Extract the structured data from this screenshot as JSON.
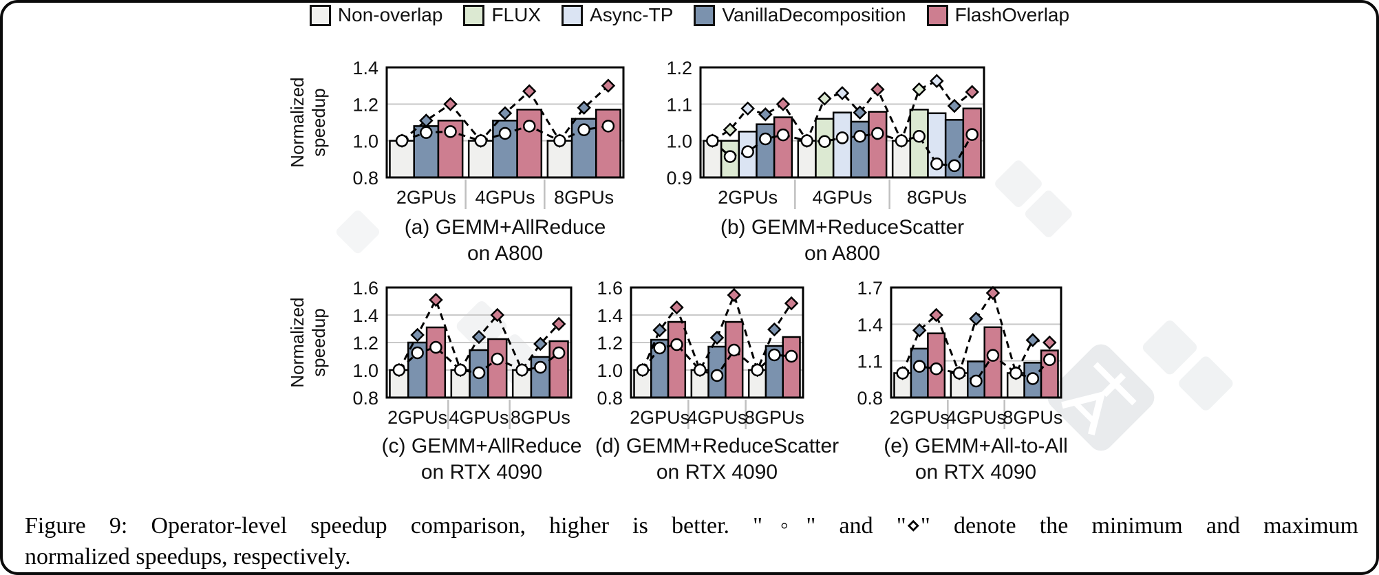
{
  "legend": {
    "items": [
      {
        "key": "non_overlap",
        "label": "Non-overlap"
      },
      {
        "key": "flux",
        "label": "FLUX"
      },
      {
        "key": "async_tp",
        "label": "Async-TP"
      },
      {
        "key": "vanilla",
        "label": "VanillaDecomposition"
      },
      {
        "key": "flash",
        "label": "FlashOverlap"
      }
    ]
  },
  "colors": {
    "non_overlap": "#f0f0ee",
    "flux": "#dce9d2",
    "async_tp": "#dbe4f3",
    "vanilla": "#7b92ae",
    "flash": "#cd7e90",
    "grid": "#c9c9c9",
    "separator": "#c0c0c0",
    "ink": "#000000"
  },
  "marker_key": {
    "min_marker": "circle",
    "max_marker": "diamond"
  },
  "chart_data": [
    {
      "id": "a",
      "type": "bar",
      "caption_line1": "(a) GEMM+AllReduce",
      "caption_line2": "on A800",
      "ylabel": "Normalized speedup",
      "ylim": [
        0.8,
        1.4
      ],
      "yticks": [
        0.8,
        1.0,
        1.2,
        1.4
      ],
      "groups": [
        "2GPUs",
        "4GPUs",
        "8GPUs"
      ],
      "series": [
        {
          "key": "non_overlap",
          "name": "Non-overlap",
          "bars": [
            1.0,
            1.0,
            1.0
          ],
          "min": [
            1.0,
            1.0,
            1.0
          ],
          "max": [
            1.0,
            1.0,
            1.0
          ]
        },
        {
          "key": "vanilla",
          "name": "VanillaDecomposition",
          "bars": [
            1.08,
            1.11,
            1.12
          ],
          "min": [
            1.045,
            1.04,
            1.06
          ],
          "max": [
            1.11,
            1.15,
            1.18
          ]
        },
        {
          "key": "flash",
          "name": "FlashOverlap",
          "bars": [
            1.11,
            1.17,
            1.17
          ],
          "min": [
            1.05,
            1.08,
            1.08
          ],
          "max": [
            1.2,
            1.27,
            1.3
          ]
        }
      ]
    },
    {
      "id": "b",
      "type": "bar",
      "caption_line1": "(b) GEMM+ReduceScatter",
      "caption_line2": "on A800",
      "ylabel": null,
      "ylim": [
        0.9,
        1.2
      ],
      "yticks": [
        0.9,
        1.0,
        1.1,
        1.2
      ],
      "groups": [
        "2GPUs",
        "4GPUs",
        "8GPUs"
      ],
      "series": [
        {
          "key": "non_overlap",
          "name": "Non-overlap",
          "bars": [
            1.0,
            1.0,
            1.0
          ],
          "min": [
            1.0,
            1.0,
            1.0
          ],
          "max": [
            1.0,
            1.0,
            1.0
          ]
        },
        {
          "key": "flux",
          "name": "FLUX",
          "bars": [
            1.0,
            1.06,
            1.085
          ],
          "min": [
            0.957,
            0.998,
            1.012
          ],
          "max": [
            1.03,
            1.115,
            1.14
          ]
        },
        {
          "key": "async_tp",
          "name": "Async-TP",
          "bars": [
            1.025,
            1.077,
            1.075
          ],
          "min": [
            0.97,
            1.008,
            0.937
          ],
          "max": [
            1.088,
            1.13,
            1.163
          ]
        },
        {
          "key": "vanilla",
          "name": "VanillaDecomposition",
          "bars": [
            1.045,
            1.052,
            1.057
          ],
          "min": [
            1.005,
            1.012,
            0.932
          ],
          "max": [
            1.072,
            1.077,
            1.095
          ]
        },
        {
          "key": "flash",
          "name": "FlashOverlap",
          "bars": [
            1.064,
            1.079,
            1.088
          ],
          "min": [
            1.016,
            1.02,
            1.017
          ],
          "max": [
            1.1,
            1.14,
            1.133
          ]
        }
      ]
    },
    {
      "id": "c",
      "type": "bar",
      "caption_line1": "(c) GEMM+AllReduce",
      "caption_line2": "on RTX 4090",
      "ylabel": "Normalized speedup",
      "ylim": [
        0.8,
        1.6
      ],
      "yticks": [
        0.8,
        1.0,
        1.2,
        1.4,
        1.6
      ],
      "groups": [
        "2GPUs",
        "4GPUs",
        "8GPUs"
      ],
      "series": [
        {
          "key": "non_overlap",
          "name": "Non-overlap",
          "bars": [
            1.0,
            1.0,
            1.0
          ],
          "min": [
            1.0,
            1.0,
            1.0
          ],
          "max": [
            1.0,
            1.0,
            1.0
          ]
        },
        {
          "key": "vanilla",
          "name": "VanillaDecomposition",
          "bars": [
            1.2,
            1.145,
            1.095
          ],
          "min": [
            1.125,
            0.98,
            1.02
          ],
          "max": [
            1.255,
            1.24,
            1.19
          ]
        },
        {
          "key": "flash",
          "name": "FlashOverlap",
          "bars": [
            1.31,
            1.225,
            1.21
          ],
          "min": [
            1.165,
            1.08,
            1.125
          ],
          "max": [
            1.51,
            1.4,
            1.335
          ]
        }
      ]
    },
    {
      "id": "d",
      "type": "bar",
      "caption_line1": "(d) GEMM+ReduceScatter",
      "caption_line2": "on RTX 4090",
      "ylabel": null,
      "ylim": [
        0.8,
        1.6
      ],
      "yticks": [
        0.8,
        1.0,
        1.2,
        1.4,
        1.6
      ],
      "groups": [
        "2GPUs",
        "4GPUs",
        "8GPUs"
      ],
      "series": [
        {
          "key": "non_overlap",
          "name": "Non-overlap",
          "bars": [
            1.0,
            1.0,
            1.0
          ],
          "min": [
            1.0,
            1.0,
            1.0
          ],
          "max": [
            1.0,
            1.0,
            1.0
          ]
        },
        {
          "key": "vanilla",
          "name": "VanillaDecomposition",
          "bars": [
            1.22,
            1.17,
            1.175
          ],
          "min": [
            1.16,
            0.96,
            1.11
          ],
          "max": [
            1.29,
            1.235,
            1.295
          ]
        },
        {
          "key": "flash",
          "name": "FlashOverlap",
          "bars": [
            1.35,
            1.35,
            1.24
          ],
          "min": [
            1.185,
            1.145,
            1.1
          ],
          "max": [
            1.455,
            1.545,
            1.485
          ]
        }
      ]
    },
    {
      "id": "e",
      "type": "bar",
      "caption_line1": "(e) GEMM+All-to-All",
      "caption_line2": "on RTX 4090",
      "ylabel": null,
      "ylim": [
        0.8,
        1.7
      ],
      "yticks": [
        0.8,
        1.1,
        1.4,
        1.7
      ],
      "groups": [
        "2GPUs",
        "4GPUs",
        "8GPUs"
      ],
      "series": [
        {
          "key": "non_overlap",
          "name": "Non-overlap",
          "bars": [
            1.0,
            1.0,
            1.0
          ],
          "min": [
            1.0,
            1.0,
            1.0
          ],
          "max": [
            1.0,
            1.0,
            1.0
          ]
        },
        {
          "key": "vanilla",
          "name": "VanillaDecomposition",
          "bars": [
            1.2,
            1.095,
            1.085
          ],
          "min": [
            1.055,
            0.935,
            0.955
          ],
          "max": [
            1.35,
            1.445,
            1.27
          ]
        },
        {
          "key": "flash",
          "name": "FlashOverlap",
          "bars": [
            1.325,
            1.375,
            1.185
          ],
          "min": [
            1.035,
            1.145,
            1.11
          ],
          "max": [
            1.475,
            1.655,
            1.25
          ]
        }
      ]
    }
  ],
  "figure_caption": {
    "line1": "Figure 9: Operator-level speedup comparison, higher is better. \"◦\" and \"⋄\" denote the minimum and maximum",
    "line2": "normalized speedups, respectively."
  },
  "watermark": {
    "icon": "immersive-translate-watermark"
  }
}
